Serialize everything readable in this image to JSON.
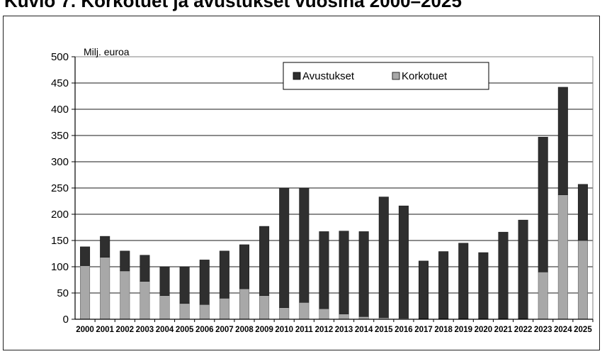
{
  "title": "Kuvio 7. Korkotuet ja avustukset vuosina 2000–2025",
  "chart_data": {
    "type": "bar",
    "stacked": true,
    "ylabel": "Milj. euroa",
    "xlabel": "",
    "ylim": [
      0,
      500
    ],
    "yticks": [
      0,
      50,
      100,
      150,
      200,
      250,
      300,
      350,
      400,
      450,
      500
    ],
    "grid": true,
    "legend_position": "top-center",
    "categories": [
      "2000",
      "2001",
      "2002",
      "2003",
      "2004",
      "2005",
      "2006",
      "2007",
      "2008",
      "2009",
      "2010",
      "2011",
      "2012",
      "2013",
      "2014",
      "2015",
      "2016",
      "2017",
      "2018",
      "2019",
      "2020",
      "2021",
      "2022",
      "2023",
      "2024",
      "2025"
    ],
    "series": [
      {
        "name": "Korkotuet",
        "color": "#a8a8a8",
        "values": [
          102,
          118,
          92,
          72,
          45,
          30,
          28,
          40,
          58,
          45,
          22,
          32,
          20,
          10,
          5,
          3,
          2,
          1,
          1,
          1,
          1,
          1,
          1,
          90,
          237,
          150
        ]
      },
      {
        "name": "Avustukset",
        "color": "#2f2f2f",
        "values": [
          36,
          40,
          38,
          50,
          55,
          70,
          85,
          90,
          84,
          132,
          228,
          218,
          147,
          158,
          162,
          230,
          214,
          110,
          128,
          144,
          126,
          165,
          188,
          257,
          205,
          107
        ]
      }
    ],
    "legend_order": [
      "Avustukset",
      "Korkotuet"
    ]
  }
}
